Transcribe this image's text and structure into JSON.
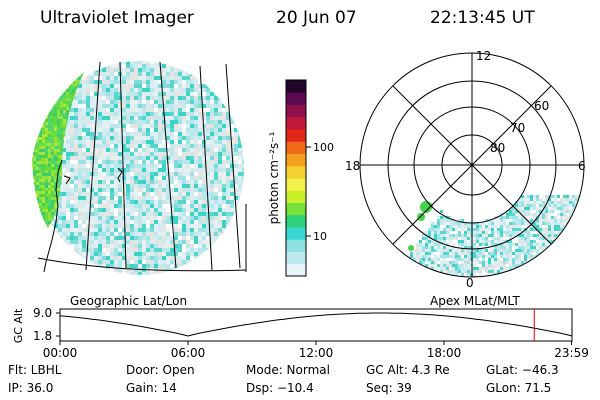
{
  "header": {
    "instrument": "Ultraviolet Imager",
    "date": "20 Jun 07",
    "time": "22:13:45 UT"
  },
  "colorbar": {
    "unit_label": "photon cm⁻²s⁻¹",
    "ticks": [
      "100",
      "10"
    ],
    "colors": [
      "#e8f4f8",
      "#bfe9ee",
      "#8fe0e0",
      "#37d8d0",
      "#2ed07a",
      "#78e03a",
      "#c8ef2a",
      "#f4f04a",
      "#f4d030",
      "#f4a020",
      "#f06818",
      "#e02818",
      "#c01838",
      "#90104e",
      "#5a0a50",
      "#20062a"
    ]
  },
  "polar": {
    "mlt_labels": [
      "12",
      "18",
      "6",
      "0"
    ],
    "lat_labels": [
      "60",
      "70",
      "80"
    ]
  },
  "panels": {
    "left_caption": "Geographic Lat/Lon",
    "right_caption": "Apex MLat/MLT"
  },
  "altitude_plot": {
    "ylabel": "GC Alt",
    "yticks": [
      "9.0",
      "1.8"
    ],
    "xticks": [
      "00:00",
      "06:00",
      "12:00",
      "18:00",
      "23:59"
    ],
    "current_marker_hours": 22.23
  },
  "status": {
    "filter": "Flt: LBHL",
    "ip": "IP: 36.0",
    "door": "Door: Open",
    "gain": "Gain: 14",
    "mode": "Mode: Normal",
    "dsp": "Dsp:  −10.4",
    "gc_alt": "GC Alt: 4.3 Re",
    "seq": "Seq: 39",
    "glat": "GLat: −46.3",
    "glon": "GLon:  71.5"
  }
}
